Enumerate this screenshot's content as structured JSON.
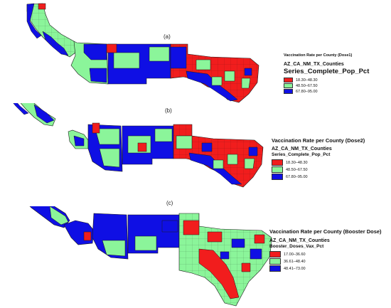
{
  "colors": {
    "red": "#f11d1d",
    "green": "#8bf59a",
    "blue": "#0f0fe4",
    "border": "#1a1a1a"
  },
  "panels": [
    {
      "label": "(a)",
      "legend": {
        "title": "Vaccination Rate per County (Dose1)",
        "layer": "AZ_CA_NM_TX_Counties",
        "field": "Series_Complete_Pop_Pct",
        "items": [
          {
            "label": "18.30–48.30",
            "color": "red"
          },
          {
            "label": "48.50–67.50",
            "color": "green"
          },
          {
            "label": "67.80–95.00",
            "color": "blue"
          }
        ]
      }
    },
    {
      "label": "(b)",
      "legend": {
        "title": "Vaccination Rate per County (Dose2)",
        "layer": "AZ_CA_NM_TX_Counties",
        "field": "Series_Complete_Pop_Pct",
        "items": [
          {
            "label": "18.30–48.30",
            "color": "red"
          },
          {
            "label": "48.50–67.50",
            "color": "green"
          },
          {
            "label": "67.80–95.00",
            "color": "blue"
          }
        ]
      }
    },
    {
      "label": "(c)",
      "legend": {
        "title": "Vaccination Rate per County (Booster Dose)",
        "layer": "AZ_CA_NM_TX_Counties",
        "field": "Booster_Doses_Vax_Pct",
        "items": [
          {
            "label": "17.00–36.60",
            "color": "red"
          },
          {
            "label": "36.61–48.40",
            "color": "green"
          },
          {
            "label": "48.41–73.00",
            "color": "blue"
          }
        ]
      }
    }
  ]
}
